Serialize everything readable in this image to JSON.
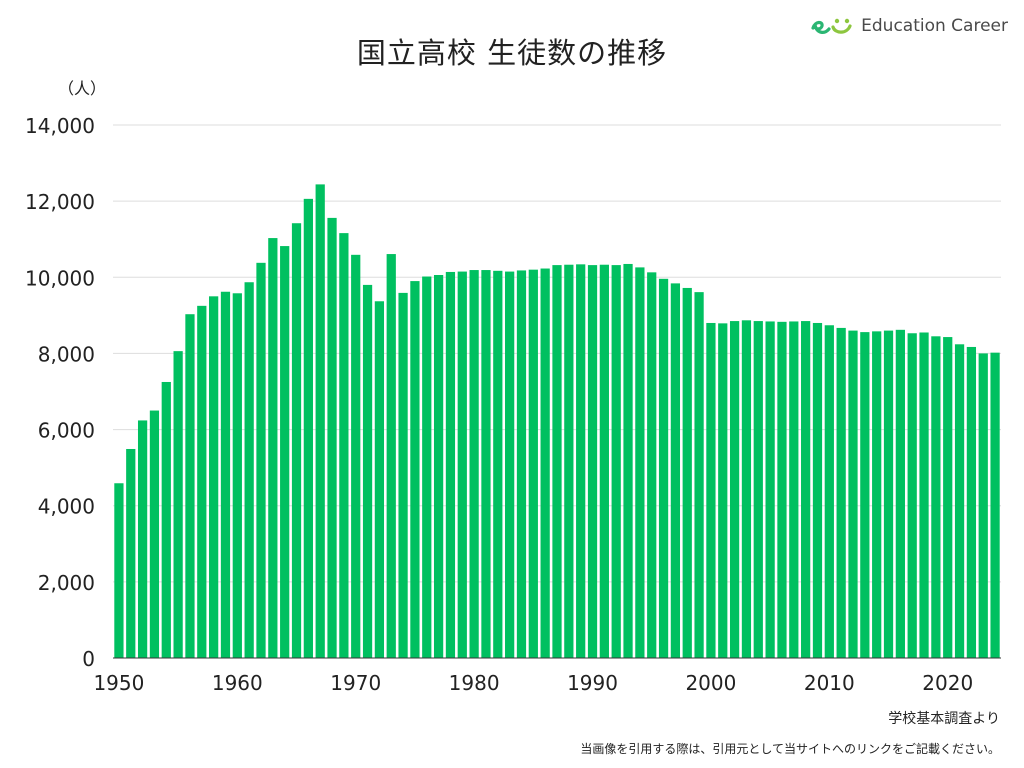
{
  "brand": {
    "name": "Education Career",
    "accent": "#00c060",
    "icon": "education-career-logo"
  },
  "source_note": "学校基本調査より",
  "footer_note": "当画像を引用する際は、引用元として当サイトへのリンクをご記載ください。",
  "chart_data": {
    "type": "bar",
    "title": "国立高校 生徒数の推移",
    "unit_label": "（人）",
    "xlabel": "",
    "ylabel": "",
    "ylim": [
      0,
      14000
    ],
    "yticks": [
      0,
      2000,
      4000,
      6000,
      8000,
      10000,
      12000,
      14000
    ],
    "ytick_labels": [
      "0",
      "2,000",
      "4,000",
      "6,000",
      "8,000",
      "10,000",
      "12,000",
      "14,000"
    ],
    "xticks": [
      1950,
      1960,
      1970,
      1980,
      1990,
      2000,
      2010,
      2020
    ],
    "xtick_labels": [
      "1950",
      "1960",
      "1970",
      "1980",
      "1990",
      "2000",
      "2010",
      "2020"
    ],
    "grid": true,
    "bar_color": "#00c060",
    "categories": [
      1950,
      1951,
      1952,
      1953,
      1954,
      1955,
      1956,
      1957,
      1958,
      1959,
      1960,
      1961,
      1962,
      1963,
      1964,
      1965,
      1966,
      1967,
      1968,
      1969,
      1970,
      1971,
      1972,
      1973,
      1974,
      1975,
      1976,
      1977,
      1978,
      1979,
      1980,
      1981,
      1982,
      1983,
      1984,
      1985,
      1986,
      1987,
      1988,
      1989,
      1990,
      1991,
      1992,
      1993,
      1994,
      1995,
      1996,
      1997,
      1998,
      1999,
      2000,
      2001,
      2002,
      2003,
      2004,
      2005,
      2006,
      2007,
      2008,
      2009,
      2010,
      2011,
      2012,
      2013,
      2014,
      2015,
      2016,
      2017,
      2018,
      2019,
      2020,
      2021,
      2022,
      2023,
      2024
    ],
    "values": [
      4590,
      5490,
      6240,
      6500,
      7250,
      8060,
      9030,
      9250,
      9500,
      9620,
      9580,
      9870,
      10380,
      11030,
      10820,
      11420,
      12060,
      12440,
      11560,
      11160,
      10590,
      9800,
      9370,
      10610,
      9590,
      9900,
      10020,
      10060,
      10140,
      10150,
      10190,
      10190,
      10170,
      10150,
      10180,
      10200,
      10230,
      10320,
      10330,
      10340,
      10320,
      10330,
      10320,
      10350,
      10260,
      10130,
      9960,
      9840,
      9720,
      9610,
      8800,
      8790,
      8850,
      8870,
      8850,
      8840,
      8830,
      8840,
      8850,
      8800,
      8740,
      8670,
      8600,
      8560,
      8580,
      8600,
      8620,
      8530,
      8550,
      8450,
      8430,
      8240,
      8170,
      8000,
      8020
    ]
  }
}
